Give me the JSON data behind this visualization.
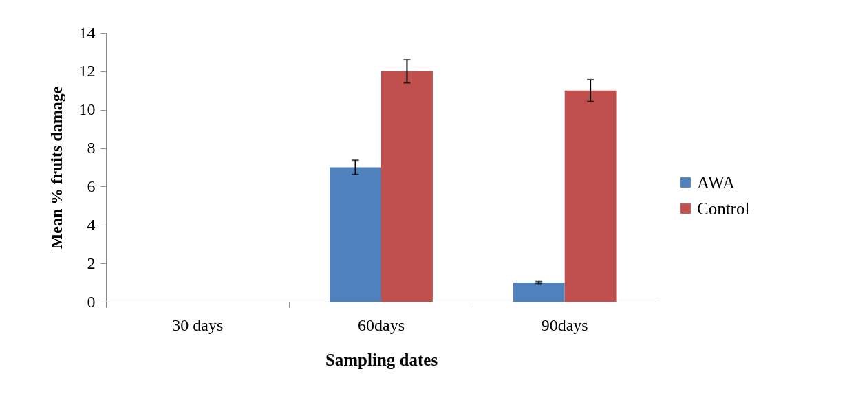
{
  "chart_data": {
    "type": "bar",
    "xlabel": "Sampling dates",
    "ylabel": "Mean % fruits damage",
    "categories": [
      "30 days",
      "60days",
      "90days"
    ],
    "series": [
      {
        "name": "AWA",
        "color": "#4f81bd",
        "values": [
          0,
          7,
          1
        ],
        "errors": [
          null,
          0.37,
          0.05
        ]
      },
      {
        "name": "Control",
        "color": "#c0504d",
        "values": [
          0,
          12,
          11
        ],
        "errors": [
          null,
          0.6,
          0.57
        ]
      }
    ],
    "ylim": [
      0,
      14
    ],
    "yticks": [
      0,
      2,
      4,
      6,
      8,
      10,
      12,
      14
    ],
    "grid": false,
    "legend": "right"
  }
}
